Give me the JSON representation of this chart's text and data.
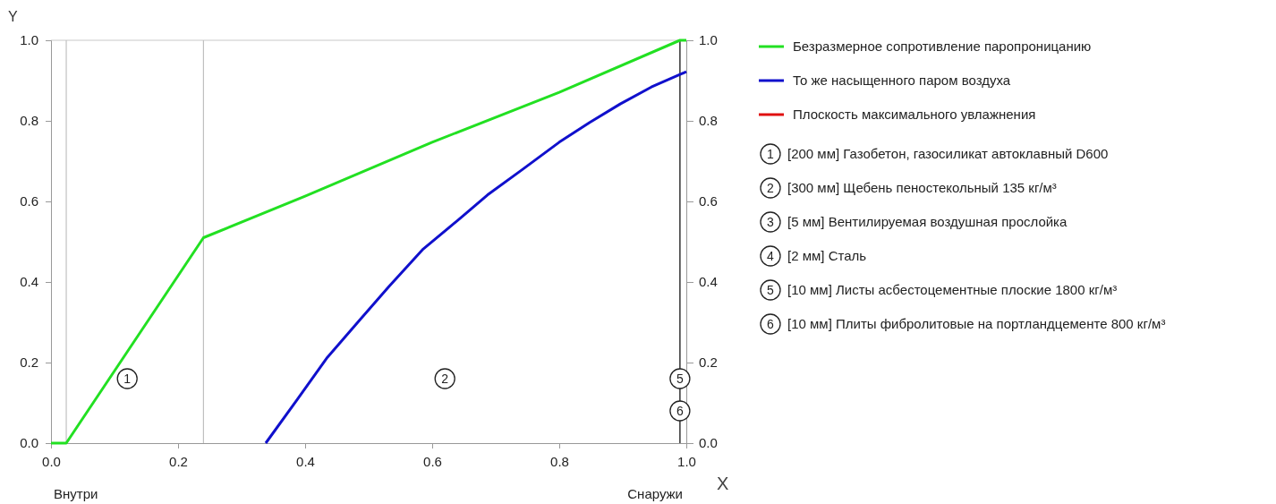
{
  "chart_data": {
    "type": "line",
    "xlabel": "X",
    "ylabel": "Y",
    "xlim": [
      0,
      1
    ],
    "ylim": [
      0,
      1
    ],
    "y2lim": [
      0,
      1
    ],
    "xticks": [
      {
        "value": 0,
        "label": "0.0"
      },
      {
        "value": 0.2,
        "label": "0.2"
      },
      {
        "value": 0.4,
        "label": "0.4"
      },
      {
        "value": 0.6,
        "label": "0.6"
      },
      {
        "value": 0.8,
        "label": "0.8"
      },
      {
        "value": 1,
        "label": "1.0"
      }
    ],
    "yticks": [
      {
        "value": 0,
        "label": "0.0"
      },
      {
        "value": 0.2,
        "label": "0.2"
      },
      {
        "value": 0.4,
        "label": "0.4"
      },
      {
        "value": 0.6,
        "label": "0.6"
      },
      {
        "value": 0.8,
        "label": "0.8"
      },
      {
        "value": 1,
        "label": "1.0"
      }
    ],
    "y2ticks": [
      {
        "value": 0,
        "label": "0.0"
      },
      {
        "value": 0.2,
        "label": "0.2"
      },
      {
        "value": 0.4,
        "label": "0.4"
      },
      {
        "value": 0.6,
        "label": "0.6"
      },
      {
        "value": 0.8,
        "label": "0.8"
      },
      {
        "value": 1,
        "label": "1.0"
      }
    ],
    "series": [
      {
        "name": "Безразмерное сопротивление паропроницанию",
        "color": "#22e022",
        "x": [
          0,
          0.024,
          0.24,
          0.4,
          0.6,
          0.8,
          0.99,
          1
        ],
        "values": [
          0,
          0,
          0.51,
          0.613,
          0.747,
          0.871,
          1,
          1
        ]
      },
      {
        "name": "То же насыщенного паром воздуха",
        "color": "#1010cc",
        "x": [
          0.338,
          0.387,
          0.435,
          0.485,
          0.532,
          0.586,
          0.644,
          0.687,
          0.741,
          0.8,
          0.848,
          0.896,
          0.945,
          1
        ],
        "values": [
          0,
          0.107,
          0.213,
          0.304,
          0.389,
          0.482,
          0.558,
          0.616,
          0.678,
          0.747,
          0.796,
          0.842,
          0.884,
          0.922
        ]
      },
      {
        "name": "Плоскость максимального увлажнения",
        "color": "#e01010"
      }
    ],
    "ref_lines": [
      {
        "axis": "x",
        "value": 0.024,
        "color": "#c0c0c0"
      },
      {
        "axis": "x",
        "value": 0.24,
        "color": "#c0c0c0"
      },
      {
        "axis": "x",
        "value": 0.99,
        "color": "#000000"
      }
    ],
    "annotations": [
      {
        "text": "1",
        "x": 0.12,
        "y": 0.16
      },
      {
        "text": "2",
        "x": 0.62,
        "y": 0.16
      },
      {
        "text": "5",
        "x": 0.99,
        "y": 0.16
      },
      {
        "text": "6",
        "x": 0.99,
        "y": 0.08
      },
      "Внутри",
      "Снаружи",
      "1",
      "[200 мм] Газобетон, газосиликат автоклавный D600",
      "2",
      "[300 мм] Щебень пеностекольный 135 кг/м³",
      "3",
      "[5 мм] Вентилируемая воздушная прослойка",
      "4",
      "[2 мм] Сталь",
      "5",
      "[10 мм] Листы асбестоцементные плоские 1800 кг/м³",
      "6",
      "[10 мм] Плиты фибролитовые на портландцементе 800 кг/м³"
    ],
    "legend": "right",
    "grid": false,
    "line_style": "solid",
    "marker": "none"
  }
}
